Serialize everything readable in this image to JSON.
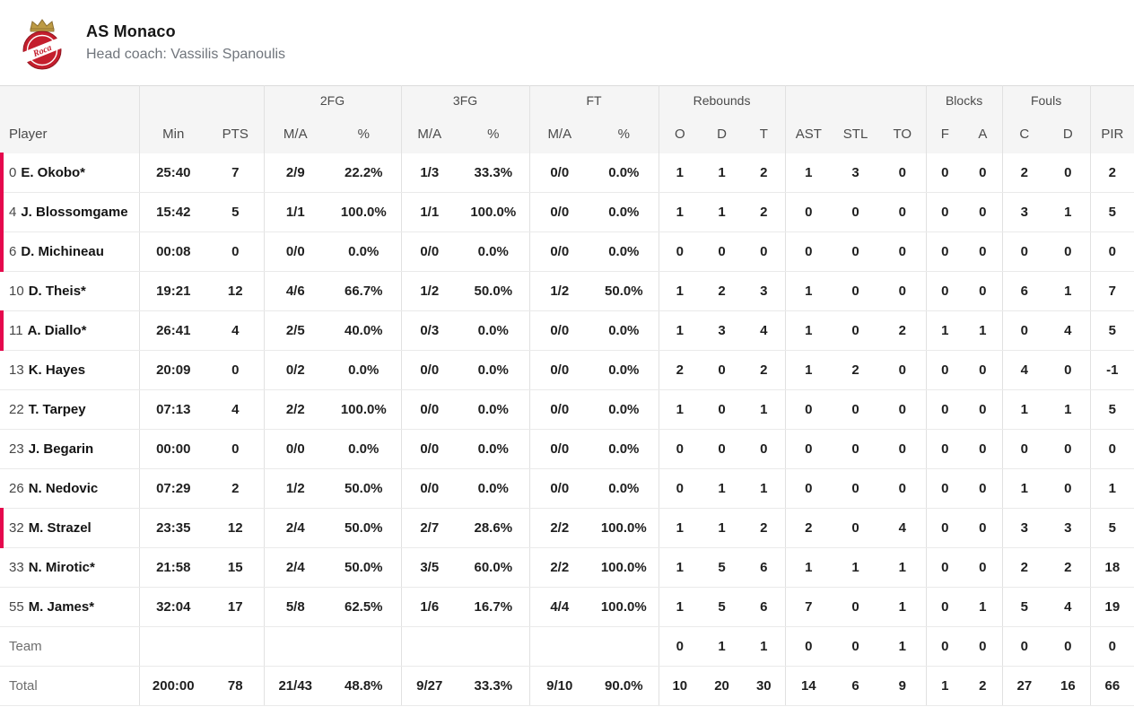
{
  "header": {
    "team_name": "AS Monaco",
    "coach_line": "Head coach: Vassilis Spanoulis",
    "logo": {
      "icon": "as-monaco-roca-team-crest",
      "script_text": "Roca"
    }
  },
  "colors": {
    "accent_red": "#e5084d",
    "header_bg": "#f5f5f5",
    "crest_red": "#c41e2d",
    "crown_gold": "#bd9b45",
    "border": "#e1e1e1"
  },
  "table": {
    "group_headers": [
      {
        "label": "",
        "span": 1
      },
      {
        "label": "",
        "span": 2
      },
      {
        "label": "2FG",
        "span": 2
      },
      {
        "label": "3FG",
        "span": 2
      },
      {
        "label": "FT",
        "span": 2
      },
      {
        "label": "Rebounds",
        "span": 3
      },
      {
        "label": "",
        "span": 3
      },
      {
        "label": "Blocks",
        "span": 2
      },
      {
        "label": "Fouls",
        "span": 2
      },
      {
        "label": "",
        "span": 1
      }
    ],
    "columns": [
      "Player",
      "Min",
      "PTS",
      "M/A",
      "%",
      "M/A",
      "%",
      "M/A",
      "%",
      "O",
      "D",
      "T",
      "AST",
      "STL",
      "TO",
      "F",
      "A",
      "C",
      "D",
      "PIR"
    ],
    "rows": [
      {
        "number": "0",
        "name": "E. Okobo*",
        "on_court": true,
        "stats": [
          "25:40",
          "7",
          "2/9",
          "22.2%",
          "1/3",
          "33.3%",
          "0/0",
          "0.0%",
          "1",
          "1",
          "2",
          "1",
          "3",
          "0",
          "0",
          "0",
          "2",
          "0",
          "2"
        ]
      },
      {
        "number": "4",
        "name": "J. Blossomgame",
        "on_court": true,
        "stats": [
          "15:42",
          "5",
          "1/1",
          "100.0%",
          "1/1",
          "100.0%",
          "0/0",
          "0.0%",
          "1",
          "1",
          "2",
          "0",
          "0",
          "0",
          "0",
          "0",
          "3",
          "1",
          "5"
        ]
      },
      {
        "number": "6",
        "name": "D. Michineau",
        "on_court": true,
        "stats": [
          "00:08",
          "0",
          "0/0",
          "0.0%",
          "0/0",
          "0.0%",
          "0/0",
          "0.0%",
          "0",
          "0",
          "0",
          "0",
          "0",
          "0",
          "0",
          "0",
          "0",
          "0",
          "0"
        ]
      },
      {
        "number": "10",
        "name": "D. Theis*",
        "on_court": false,
        "stats": [
          "19:21",
          "12",
          "4/6",
          "66.7%",
          "1/2",
          "50.0%",
          "1/2",
          "50.0%",
          "1",
          "2",
          "3",
          "1",
          "0",
          "0",
          "0",
          "0",
          "6",
          "1",
          "7"
        ]
      },
      {
        "number": "11",
        "name": "A. Diallo*",
        "on_court": true,
        "stats": [
          "26:41",
          "4",
          "2/5",
          "40.0%",
          "0/3",
          "0.0%",
          "0/0",
          "0.0%",
          "1",
          "3",
          "4",
          "1",
          "0",
          "2",
          "1",
          "1",
          "0",
          "4",
          "5"
        ]
      },
      {
        "number": "13",
        "name": "K. Hayes",
        "on_court": false,
        "stats": [
          "20:09",
          "0",
          "0/2",
          "0.0%",
          "0/0",
          "0.0%",
          "0/0",
          "0.0%",
          "2",
          "0",
          "2",
          "1",
          "2",
          "0",
          "0",
          "0",
          "4",
          "0",
          "-1"
        ]
      },
      {
        "number": "22",
        "name": "T. Tarpey",
        "on_court": false,
        "stats": [
          "07:13",
          "4",
          "2/2",
          "100.0%",
          "0/0",
          "0.0%",
          "0/0",
          "0.0%",
          "1",
          "0",
          "1",
          "0",
          "0",
          "0",
          "0",
          "0",
          "1",
          "1",
          "5"
        ]
      },
      {
        "number": "23",
        "name": "J. Begarin",
        "on_court": false,
        "stats": [
          "00:00",
          "0",
          "0/0",
          "0.0%",
          "0/0",
          "0.0%",
          "0/0",
          "0.0%",
          "0",
          "0",
          "0",
          "0",
          "0",
          "0",
          "0",
          "0",
          "0",
          "0",
          "0"
        ]
      },
      {
        "number": "26",
        "name": "N. Nedovic",
        "on_court": false,
        "stats": [
          "07:29",
          "2",
          "1/2",
          "50.0%",
          "0/0",
          "0.0%",
          "0/0",
          "0.0%",
          "0",
          "1",
          "1",
          "0",
          "0",
          "0",
          "0",
          "0",
          "1",
          "0",
          "1"
        ]
      },
      {
        "number": "32",
        "name": "M. Strazel",
        "on_court": true,
        "stats": [
          "23:35",
          "12",
          "2/4",
          "50.0%",
          "2/7",
          "28.6%",
          "2/2",
          "100.0%",
          "1",
          "1",
          "2",
          "2",
          "0",
          "4",
          "0",
          "0",
          "3",
          "3",
          "5"
        ]
      },
      {
        "number": "33",
        "name": "N. Mirotic*",
        "on_court": false,
        "stats": [
          "21:58",
          "15",
          "2/4",
          "50.0%",
          "3/5",
          "60.0%",
          "2/2",
          "100.0%",
          "1",
          "5",
          "6",
          "1",
          "1",
          "1",
          "0",
          "0",
          "2",
          "2",
          "18"
        ]
      },
      {
        "number": "55",
        "name": "M. James*",
        "on_court": false,
        "stats": [
          "32:04",
          "17",
          "5/8",
          "62.5%",
          "1/6",
          "16.7%",
          "4/4",
          "100.0%",
          "1",
          "5",
          "6",
          "7",
          "0",
          "1",
          "0",
          "1",
          "5",
          "4",
          "19"
        ]
      }
    ],
    "team_row": {
      "label": "Team",
      "stats": [
        "",
        "",
        "",
        "",
        "",
        "",
        "",
        "",
        "0",
        "1",
        "1",
        "0",
        "0",
        "1",
        "0",
        "0",
        "0",
        "0",
        "0"
      ]
    },
    "total_row": {
      "label": "Total",
      "stats": [
        "200:00",
        "78",
        "21/43",
        "48.8%",
        "9/27",
        "33.3%",
        "9/10",
        "90.0%",
        "10",
        "20",
        "30",
        "14",
        "6",
        "9",
        "1",
        "2",
        "27",
        "16",
        "66"
      ]
    }
  }
}
